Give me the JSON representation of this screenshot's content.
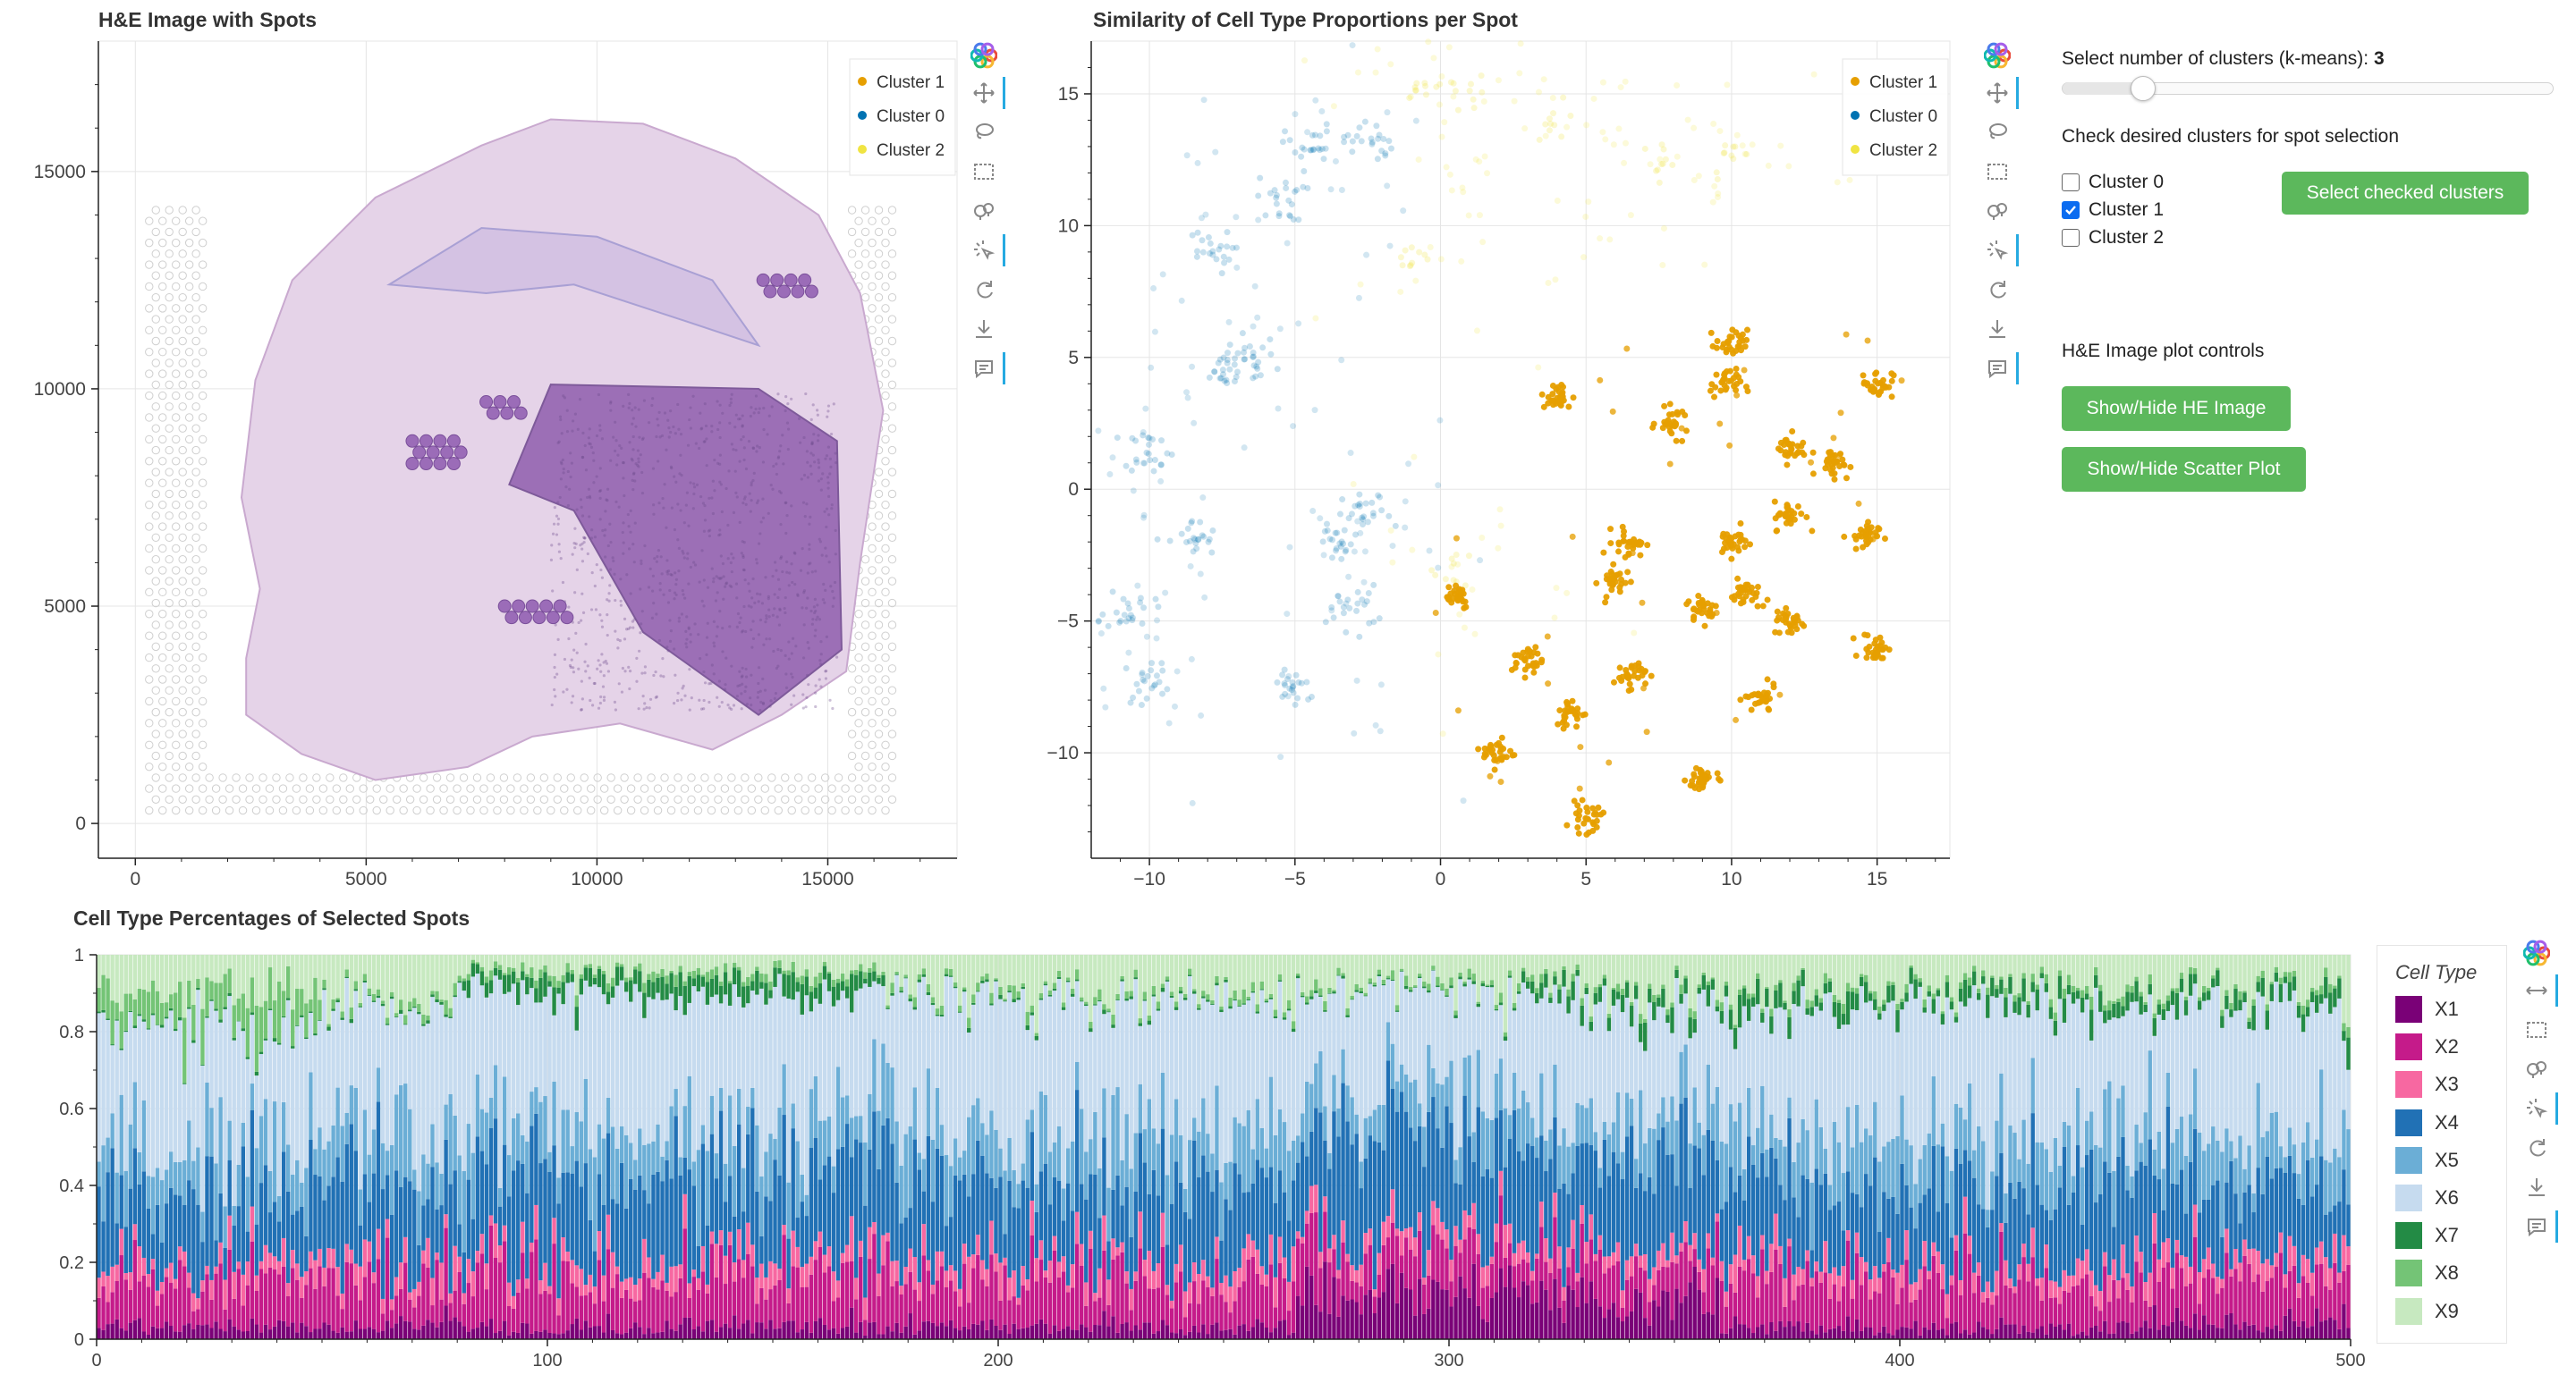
{
  "he_plot": {
    "title": "H&E Image with Spots",
    "x_ticks": [
      "0",
      "5000",
      "10000",
      "15000"
    ],
    "y_ticks": [
      "0",
      "5000",
      "10000",
      "15000"
    ],
    "legend": [
      {
        "label": "Cluster 1",
        "color": "#e69f00"
      },
      {
        "label": "Cluster 0",
        "color": "#0072b2"
      },
      {
        "label": "Cluster 2",
        "color": "#f0e442"
      }
    ]
  },
  "scatter_plot": {
    "title": "Similarity of Cell Type Proportions per Spot",
    "x_ticks": [
      "−10",
      "−5",
      "0",
      "5",
      "10",
      "15"
    ],
    "y_ticks": [
      "15",
      "10",
      "5",
      "0",
      "−5",
      "−10"
    ],
    "legend": [
      {
        "label": "Cluster 1",
        "color": "#e69f00"
      },
      {
        "label": "Cluster 0",
        "color": "#0072b2"
      },
      {
        "label": "Cluster 2",
        "color": "#f0e442"
      }
    ]
  },
  "controls": {
    "slider_label": "Select number of clusters (k-means):",
    "slider_value": "3",
    "slider_min": 2,
    "slider_max": 10,
    "checkbox_title": "Check desired clusters for spot selection",
    "checkboxes": [
      {
        "label": "Cluster 0",
        "checked": false
      },
      {
        "label": "Cluster 1",
        "checked": true
      },
      {
        "label": "Cluster 2",
        "checked": false
      }
    ],
    "select_button": "Select checked clusters",
    "he_controls_title": "H&E Image plot controls",
    "toggle_he_button": "Show/Hide HE Image",
    "toggle_scatter_button": "Show/Hide Scatter Plot"
  },
  "bar_plot": {
    "title": "Cell Type Percentages of Selected Spots",
    "legend_title": "Cell Type",
    "x_ticks": [
      "0",
      "100",
      "200",
      "300",
      "400",
      "500"
    ],
    "y_ticks": [
      "0",
      "0.2",
      "0.4",
      "0.6",
      "0.8",
      "1"
    ],
    "cell_types": [
      {
        "label": "X1",
        "color": "#7a0177"
      },
      {
        "label": "X2",
        "color": "#c51b8a"
      },
      {
        "label": "X3",
        "color": "#f768a1"
      },
      {
        "label": "X4",
        "color": "#2171b5"
      },
      {
        "label": "X5",
        "color": "#6baed6"
      },
      {
        "label": "X6",
        "color": "#c6dbef"
      },
      {
        "label": "X7",
        "color": "#238b45"
      },
      {
        "label": "X8",
        "color": "#74c476"
      },
      {
        "label": "X9",
        "color": "#c7e9c0"
      }
    ]
  },
  "chart_data": [
    {
      "type": "scatter",
      "title": "H&E Image with Spots",
      "xlim": [
        -800,
        17800
      ],
      "ylim": [
        -800,
        18000
      ],
      "series": [
        {
          "name": "Cluster 1",
          "color": "#e69f00",
          "note": "spots hidden over tissue"
        },
        {
          "name": "Cluster 0",
          "color": "#0072b2"
        },
        {
          "name": "Cluster 2",
          "color": "#f0e442"
        }
      ]
    },
    {
      "type": "scatter",
      "title": "Similarity of Cell Type Proportions per Spot",
      "xlim": [
        -12,
        17.5
      ],
      "ylim": [
        -14,
        17
      ],
      "series": [
        {
          "name": "Cluster 1",
          "color": "#e69f00",
          "centers": [
            [
              6,
              -3.5
            ],
            [
              6.5,
              -7
            ],
            [
              10.5,
              -4
            ],
            [
              10,
              -2
            ],
            [
              8,
              2.5
            ],
            [
              11,
              -8
            ],
            [
              12,
              1.5
            ],
            [
              9,
              -11
            ],
            [
              5,
              -12.5
            ],
            [
              15,
              -6
            ],
            [
              15,
              4
            ],
            [
              13.5,
              1
            ],
            [
              14.5,
              -1.8
            ],
            [
              9.8,
              4
            ],
            [
              10,
              5.5
            ],
            [
              4,
              3.5
            ],
            [
              6.5,
              -2
            ],
            [
              3,
              -6.5
            ],
            [
              2,
              -10
            ],
            [
              0.5,
              -4
            ],
            [
              9,
              -4.5
            ],
            [
              12,
              -1
            ],
            [
              12,
              -5
            ],
            [
              4.5,
              -8.5
            ]
          ]
        },
        {
          "name": "Cluster 0",
          "color": "#0072b2",
          "centers": [
            [
              -8.5,
              -2
            ],
            [
              -10.7,
              -4.5
            ],
            [
              -10,
              1.5
            ],
            [
              -7.5,
              4.5
            ],
            [
              -8,
              9
            ],
            [
              -5.5,
              11
            ],
            [
              -2.5,
              13.2
            ],
            [
              -4.5,
              13
            ],
            [
              -3.5,
              -2
            ],
            [
              -2.5,
              -1
            ],
            [
              -5,
              -7.5
            ],
            [
              -3,
              -4.5
            ],
            [
              -10,
              -7.3
            ],
            [
              -6.5,
              5
            ]
          ]
        },
        {
          "name": "Cluster 2",
          "color": "#f0e442",
          "centers": [
            [
              -0.5,
              15.2
            ],
            [
              1,
              15
            ],
            [
              -1,
              9
            ],
            [
              0.5,
              -3
            ],
            [
              4,
              14
            ],
            [
              10,
              12.5
            ],
            [
              7.5,
              12.5
            ]
          ]
        }
      ]
    },
    {
      "type": "bar",
      "stacked": true,
      "title": "Cell Type Percentages of Selected Spots",
      "x_range": [
        0,
        500
      ],
      "ylim": [
        0,
        1
      ],
      "n_bars": 500,
      "series_order": [
        "X1",
        "X2",
        "X3",
        "X4",
        "X5",
        "X6",
        "X7",
        "X8",
        "X9"
      ],
      "typical_mean_proportions": {
        "X1": 0.05,
        "X2": 0.12,
        "X3": 0.05,
        "X4": 0.2,
        "X5": 0.13,
        "X6": 0.33,
        "X7": 0.02,
        "X8": 0.02,
        "X9": 0.08
      }
    }
  ]
}
